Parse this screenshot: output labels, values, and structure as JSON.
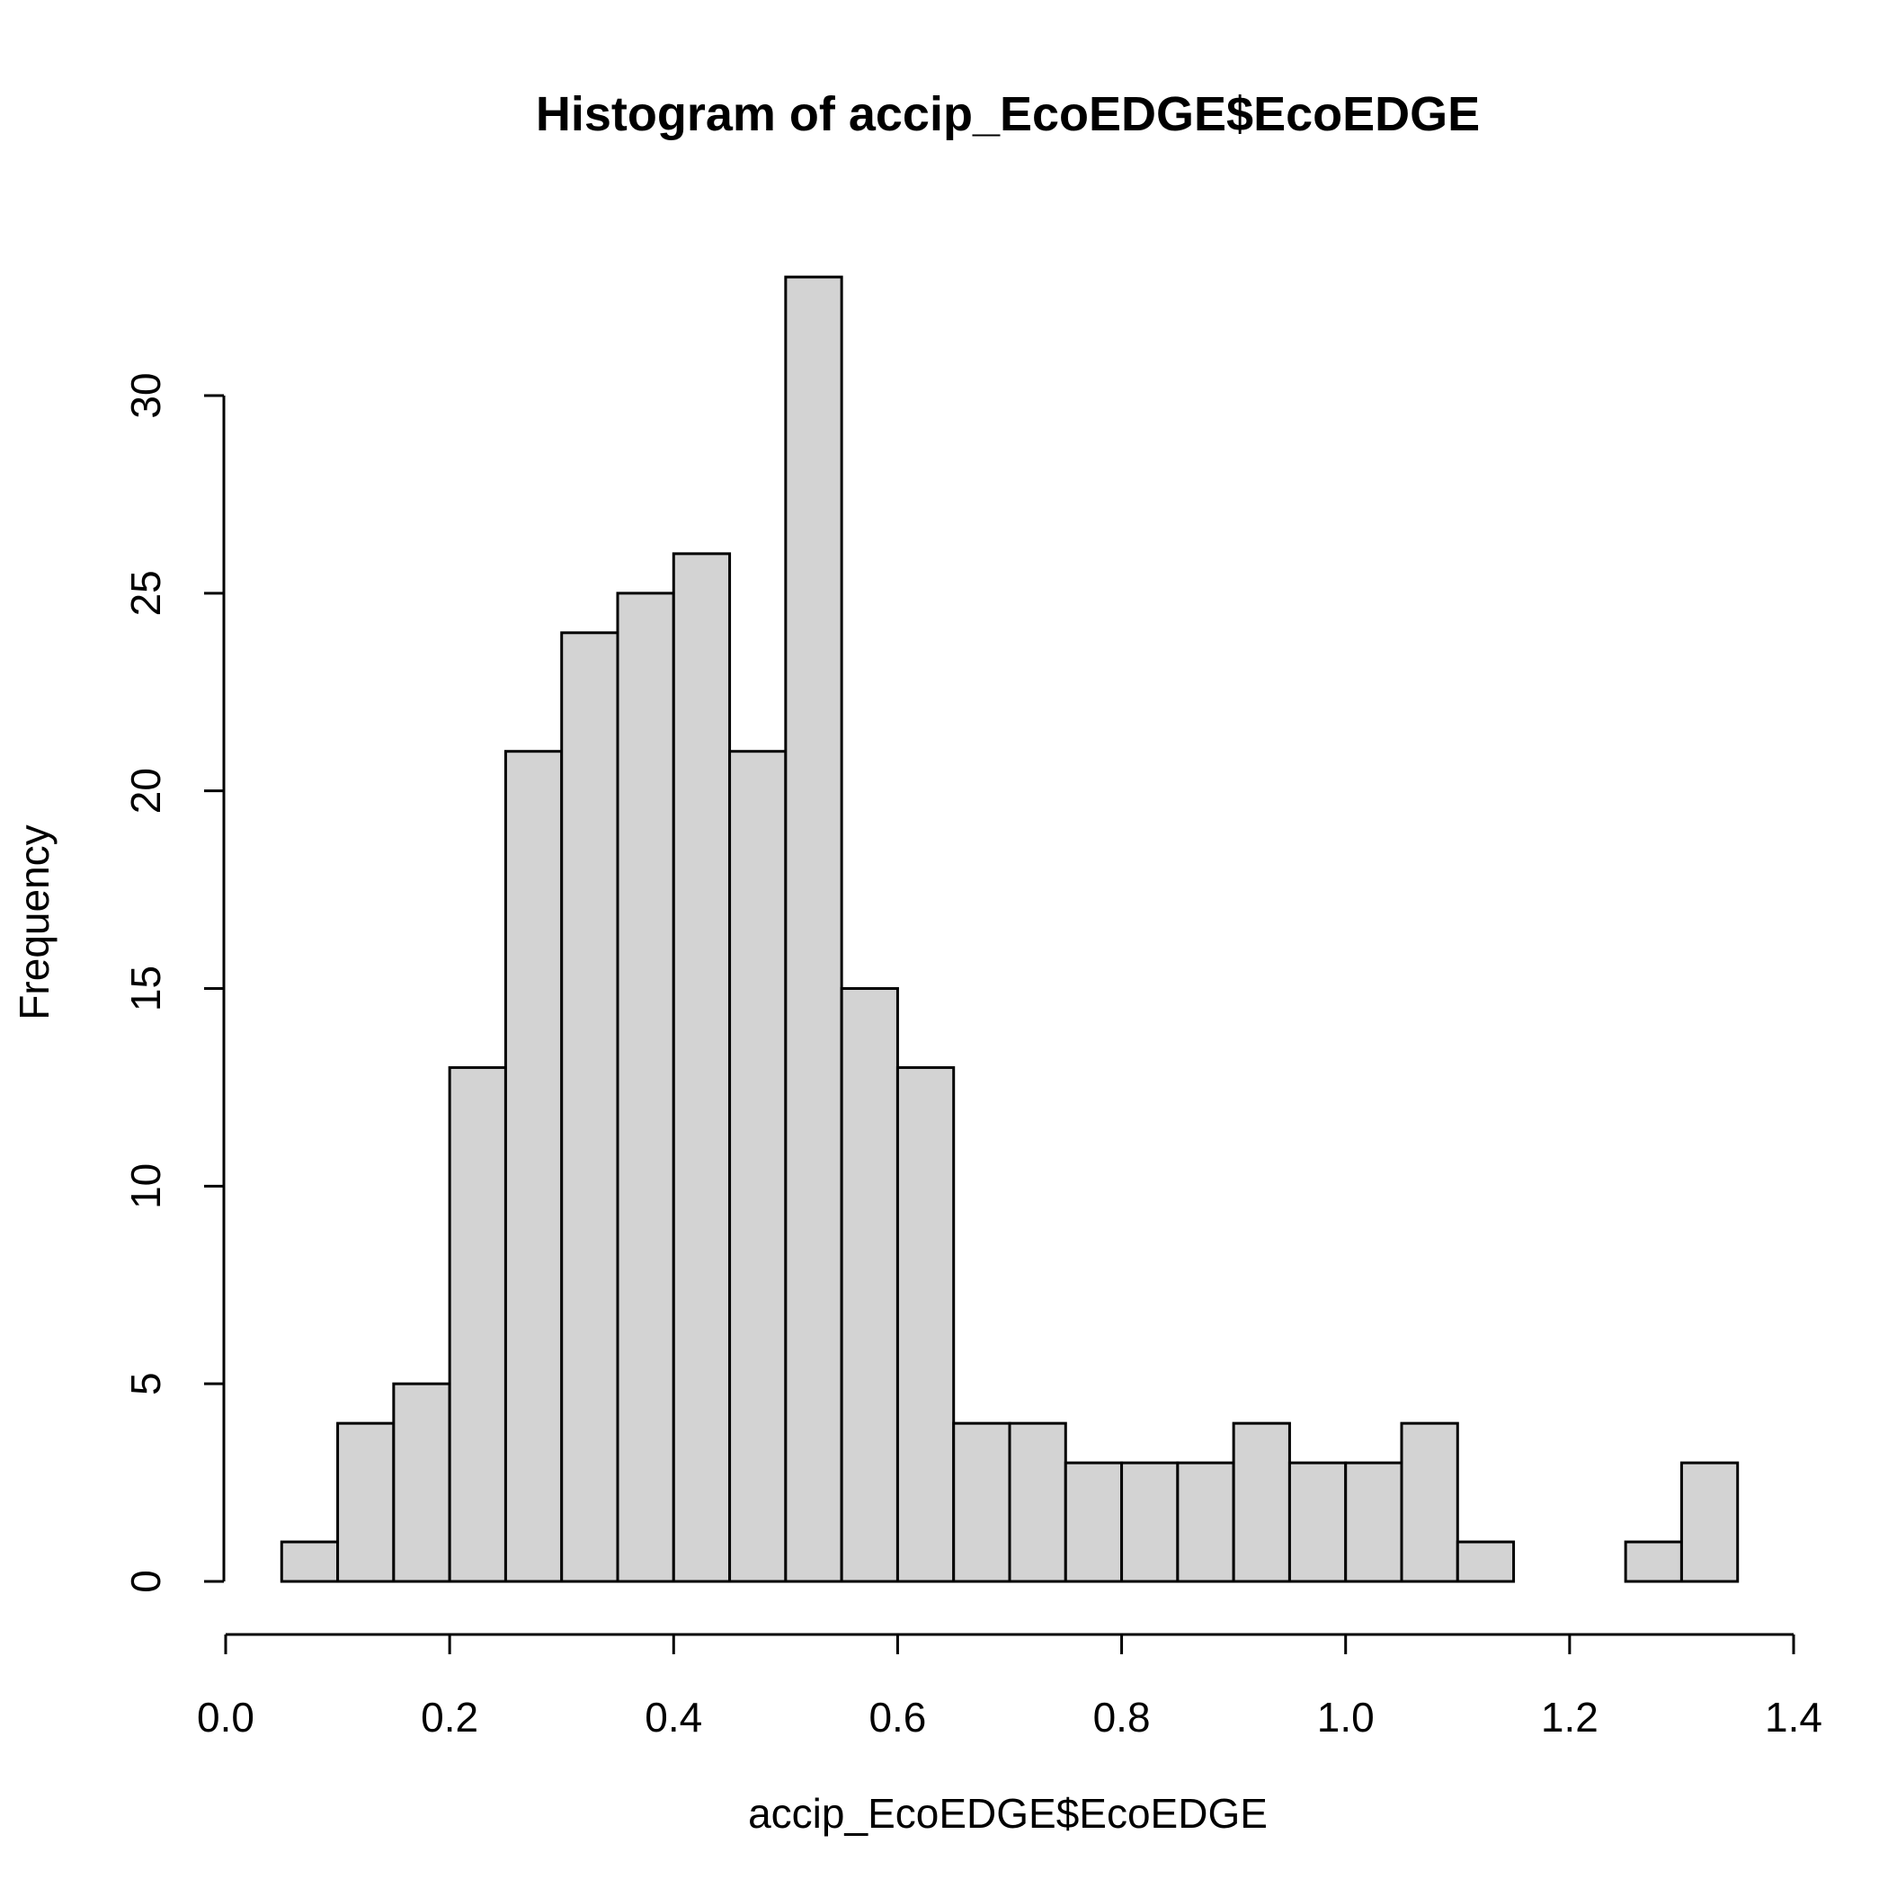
{
  "chart_data": {
    "type": "bar",
    "title": "Histogram of accip_EcoEDGE$EcoEDGE",
    "xlabel": "accip_EcoEDGE$EcoEDGE",
    "ylabel": "Frequency",
    "bin_width": 0.05,
    "bins": [
      {
        "start": 0.05,
        "end": 0.1,
        "count": 1
      },
      {
        "start": 0.1,
        "end": 0.15,
        "count": 4
      },
      {
        "start": 0.15,
        "end": 0.2,
        "count": 5
      },
      {
        "start": 0.2,
        "end": 0.25,
        "count": 13
      },
      {
        "start": 0.25,
        "end": 0.3,
        "count": 21
      },
      {
        "start": 0.3,
        "end": 0.35,
        "count": 24
      },
      {
        "start": 0.35,
        "end": 0.4,
        "count": 25
      },
      {
        "start": 0.4,
        "end": 0.45,
        "count": 26
      },
      {
        "start": 0.45,
        "end": 0.5,
        "count": 21
      },
      {
        "start": 0.5,
        "end": 0.55,
        "count": 33
      },
      {
        "start": 0.55,
        "end": 0.6,
        "count": 15
      },
      {
        "start": 0.6,
        "end": 0.65,
        "count": 13
      },
      {
        "start": 0.65,
        "end": 0.7,
        "count": 4
      },
      {
        "start": 0.7,
        "end": 0.75,
        "count": 4
      },
      {
        "start": 0.75,
        "end": 0.8,
        "count": 3
      },
      {
        "start": 0.8,
        "end": 0.85,
        "count": 3
      },
      {
        "start": 0.85,
        "end": 0.9,
        "count": 3
      },
      {
        "start": 0.9,
        "end": 0.95,
        "count": 4
      },
      {
        "start": 0.95,
        "end": 1.0,
        "count": 3
      },
      {
        "start": 1.0,
        "end": 1.05,
        "count": 3
      },
      {
        "start": 1.05,
        "end": 1.1,
        "count": 4
      },
      {
        "start": 1.1,
        "end": 1.15,
        "count": 1
      },
      {
        "start": 1.15,
        "end": 1.2,
        "count": 0
      },
      {
        "start": 1.2,
        "end": 1.25,
        "count": 0
      },
      {
        "start": 1.25,
        "end": 1.3,
        "count": 1
      },
      {
        "start": 1.3,
        "end": 1.35,
        "count": 3
      }
    ],
    "xlim": [
      0.0,
      1.4
    ],
    "ylim": [
      0,
      33
    ],
    "x_ticks": [
      0.0,
      0.2,
      0.4,
      0.6,
      0.8,
      1.0,
      1.2,
      1.4
    ],
    "x_tick_labels": [
      "0.0",
      "0.2",
      "0.4",
      "0.6",
      "0.8",
      "1.0",
      "1.2",
      "1.4"
    ],
    "y_ticks": [
      0,
      5,
      10,
      15,
      20,
      25,
      30
    ],
    "y_tick_labels": [
      "0",
      "5",
      "10",
      "15",
      "20",
      "25",
      "30"
    ],
    "grid": false,
    "legend": "none",
    "bar_color": "#d3d3d3",
    "edge_color": "#000000"
  }
}
